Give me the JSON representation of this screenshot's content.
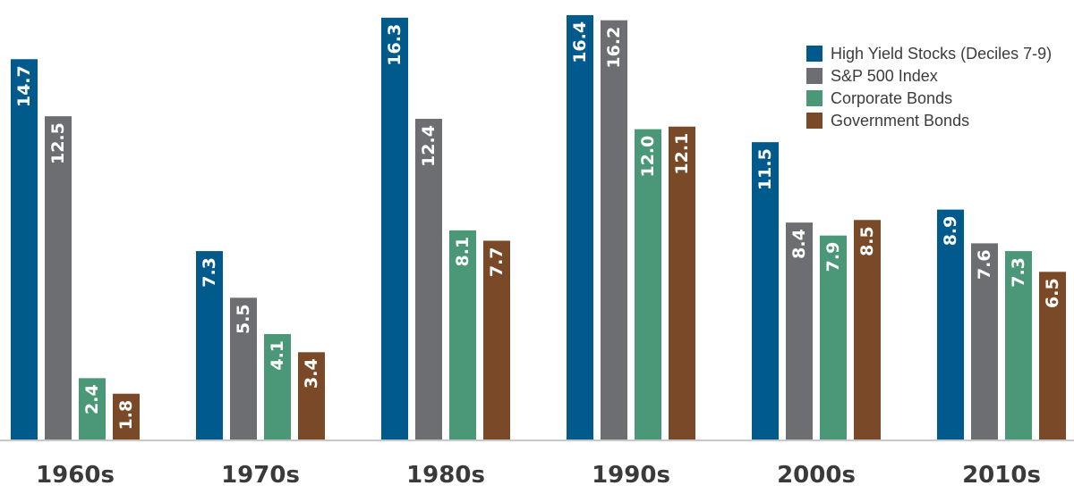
{
  "chart_data": {
    "type": "bar",
    "categories": [
      "1960s",
      "1970s",
      "1980s",
      "1990s",
      "2000s",
      "2010s"
    ],
    "series": [
      {
        "name": "High Yield Stocks (Deciles 7-9)",
        "color": "#005a8c",
        "values": [
          14.7,
          7.3,
          16.3,
          16.4,
          11.5,
          8.9
        ]
      },
      {
        "name": "S&P 500 Index",
        "color": "#6d6e71",
        "values": [
          12.5,
          5.5,
          12.4,
          16.2,
          8.4,
          7.6
        ]
      },
      {
        "name": "Corporate Bonds",
        "color": "#4a9878",
        "values": [
          2.4,
          4.1,
          8.1,
          12.0,
          7.9,
          7.3
        ]
      },
      {
        "name": "Government Bonds",
        "color": "#7a4a28",
        "values": [
          1.8,
          3.4,
          7.7,
          12.1,
          8.5,
          6.5
        ]
      }
    ],
    "ylim": [
      0,
      16.5
    ],
    "legend_position": "top-right",
    "grid": false,
    "baseline_color": "#c8c8c8"
  }
}
